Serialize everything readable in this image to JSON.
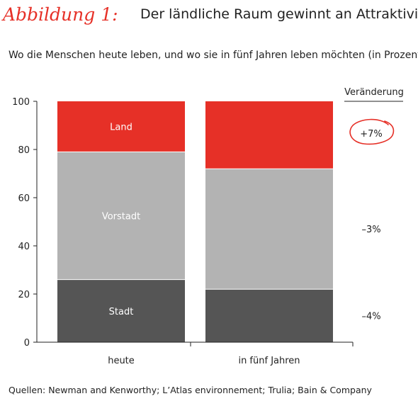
{
  "header": {
    "figure_label": "Abbildung 1:",
    "title": "Der ländliche Raum gewinnt an Attraktivität"
  },
  "subtitle": "Wo die Menschen heute leben, und wo sie in fünf Jahren leben möchten (in Prozent)",
  "source": "Quellen: Newman and Kenworthy; L’Atlas environnement; Trulia; Bain & Company",
  "colors": {
    "stadt": "#555555",
    "vorstadt": "#b3b3b3",
    "land": "#e63027",
    "axis": "#222222",
    "highlight": "#e63027"
  },
  "chart_data": {
    "type": "bar",
    "stacked": true,
    "title": "Der ländliche Raum gewinnt an Attraktivität",
    "categories": [
      "heute",
      "in fünf Jahren"
    ],
    "series": [
      {
        "name": "Stadt",
        "values": [
          26,
          22
        ],
        "color": "#555555"
      },
      {
        "name": "Vorstadt",
        "values": [
          53,
          50
        ],
        "color": "#b3b3b3"
      },
      {
        "name": "Land",
        "values": [
          21,
          28
        ],
        "color": "#e63027"
      }
    ],
    "ylim": [
      0,
      100
    ],
    "yticks": [
      0,
      20,
      40,
      60,
      80,
      100
    ],
    "change_header": "Veränderung",
    "changes": [
      {
        "series": "Land",
        "label": "+7%",
        "highlighted": true
      },
      {
        "series": "Vorstadt",
        "label": "–3%",
        "highlighted": false
      },
      {
        "series": "Stadt",
        "label": "–4%",
        "highlighted": false
      }
    ],
    "grid": false,
    "legend": "none"
  }
}
